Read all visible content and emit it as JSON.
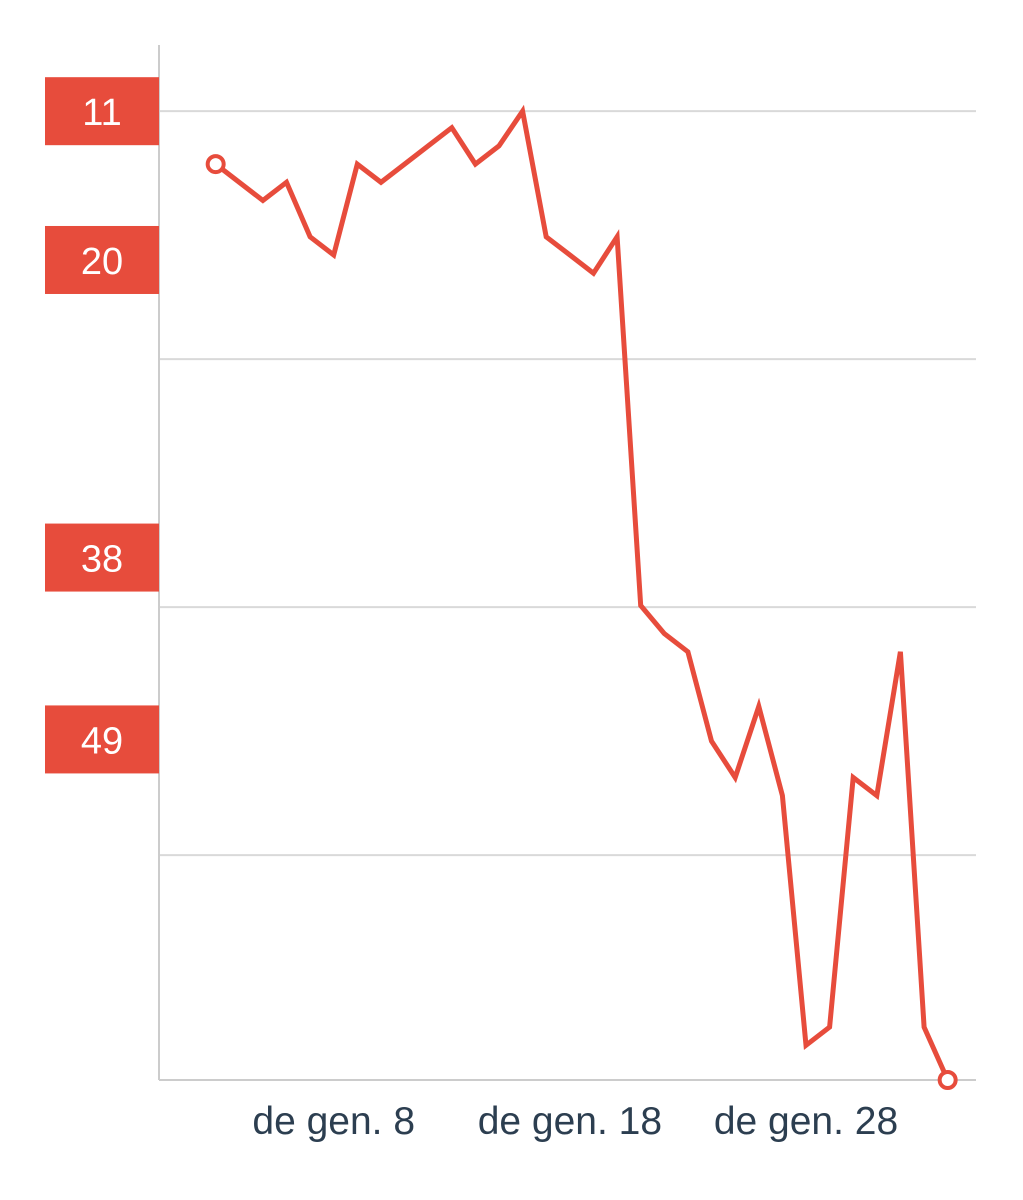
{
  "colors": {
    "series": "#e74c3c",
    "label_bg": "#e74c3c",
    "label_text": "#ffffff",
    "grid": "#d9d9d9",
    "axis": "#cccccc",
    "x_tick_text": "#2c3e50",
    "background": "#ffffff"
  },
  "chart_data": {
    "type": "line",
    "title": "",
    "xlabel": "",
    "ylabel": "",
    "y_axis": {
      "inverted": true,
      "range": [
        9.9,
        69.6
      ],
      "gridlines": [
        11,
        26,
        41,
        56
      ],
      "label_style": "red badges on the left"
    },
    "x_axis": {
      "range": [
        0.6,
        35.2
      ]
    },
    "y_tick_labels": [
      {
        "value": 11,
        "text": "11"
      },
      {
        "value": 20,
        "text": "20"
      },
      {
        "value": 38,
        "text": "38"
      },
      {
        "value": 49,
        "text": "49"
      }
    ],
    "x_tick_labels": [
      {
        "value": 8,
        "text": "de gen. 8"
      },
      {
        "value": 18,
        "text": "de gen. 18"
      },
      {
        "value": 28,
        "text": "de gen. 28"
      }
    ],
    "grid": true,
    "legend": "none",
    "series": [
      {
        "x": [
          3,
          5,
          6,
          7,
          8,
          9,
          10,
          11,
          12,
          13,
          14,
          15,
          16,
          17,
          18,
          19,
          20,
          21,
          22,
          23,
          24,
          25,
          26,
          27,
          28,
          29,
          30,
          31,
          32,
          33,
          34
        ],
        "y": [
          14.2,
          16.4,
          15.3,
          18.6,
          19.7,
          14.2,
          15.3,
          14.2,
          13.1,
          12.0,
          14.2,
          13.1,
          11.0,
          18.6,
          19.7,
          20.8,
          18.6,
          40.9,
          42.6,
          43.7,
          49.1,
          51.3,
          47.0,
          52.4,
          67.5,
          66.4,
          51.3,
          52.4,
          43.7,
          66.4,
          69.6
        ],
        "markers": "first and last point"
      }
    ]
  }
}
